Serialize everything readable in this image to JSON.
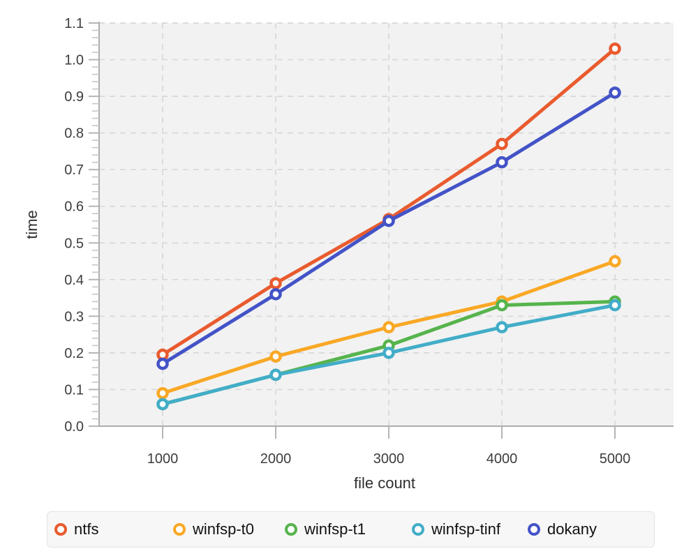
{
  "chart_data": {
    "type": "line",
    "title": "",
    "xlabel": "file count",
    "ylabel": "time",
    "x": [
      1000,
      2000,
      3000,
      4000,
      5000
    ],
    "xticks": [
      "1000",
      "2000",
      "3000",
      "4000",
      "5000"
    ],
    "yticks": [
      "0.0",
      "0.1",
      "0.2",
      "0.3",
      "0.4",
      "0.5",
      "0.6",
      "0.7",
      "0.8",
      "0.9",
      "1.0",
      "1.1"
    ],
    "ylim": [
      0.0,
      1.1
    ],
    "grid": true,
    "grid_style": "dashed",
    "legend_position": "bottom",
    "marker": "open-circle",
    "series": [
      {
        "name": "ntfs",
        "color": "#e95b2e",
        "values": [
          0.195,
          0.39,
          0.565,
          0.77,
          1.03
        ]
      },
      {
        "name": "winfsp-t0",
        "color": "#f9a825",
        "values": [
          0.09,
          0.19,
          0.27,
          0.34,
          0.45
        ]
      },
      {
        "name": "winfsp-t1",
        "color": "#56b44c",
        "values": [
          0.06,
          0.14,
          0.22,
          0.33,
          0.34
        ]
      },
      {
        "name": "winfsp-tinf",
        "color": "#42adc8",
        "values": [
          0.06,
          0.14,
          0.2,
          0.27,
          0.33
        ]
      },
      {
        "name": "dokany",
        "color": "#4353c7",
        "values": [
          0.17,
          0.36,
          0.56,
          0.72,
          0.91
        ]
      }
    ],
    "styles": {
      "plot_background": "#f2f2f2",
      "grid_color": "#d8d8d8",
      "axis_color": "#adadad",
      "major_tick_color": "#b5b5b5",
      "minor_tick_color": "#c6c6c6",
      "tick_label_color": "#3d3d3d",
      "axis_title_color": "#2e2e2e",
      "legend_background": "#f7f7f7",
      "legend_border": "#e3e3e3",
      "legend_text_color": "#111111",
      "marker_fill": "#ffffff"
    }
  }
}
